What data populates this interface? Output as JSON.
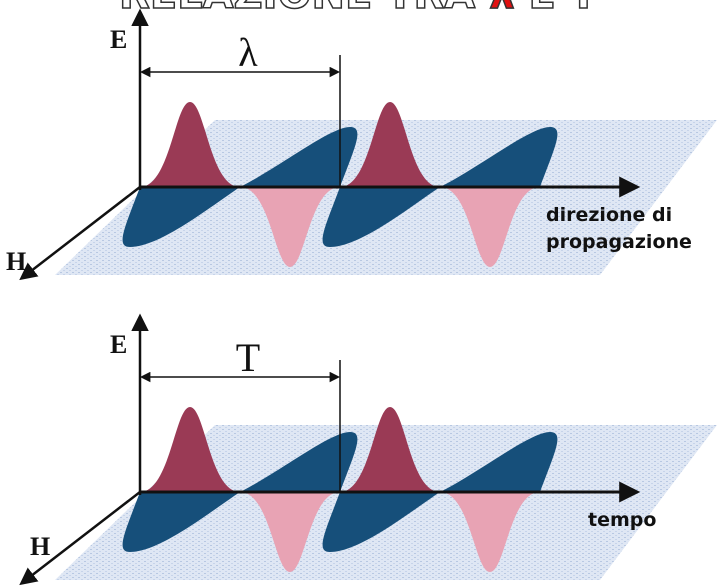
{
  "title": {
    "before": "RELAZIONE TRA",
    "symbol": "λ",
    "after": "E T"
  },
  "diagrams": [
    {
      "e_label": "E",
      "period_label": "λ",
      "h_label": "H",
      "axis_label": [
        "direzione di",
        "propagazione"
      ]
    },
    {
      "e_label": "E",
      "period_label": "T",
      "h_label": "H",
      "axis_label": [
        "tempo"
      ]
    }
  ]
}
